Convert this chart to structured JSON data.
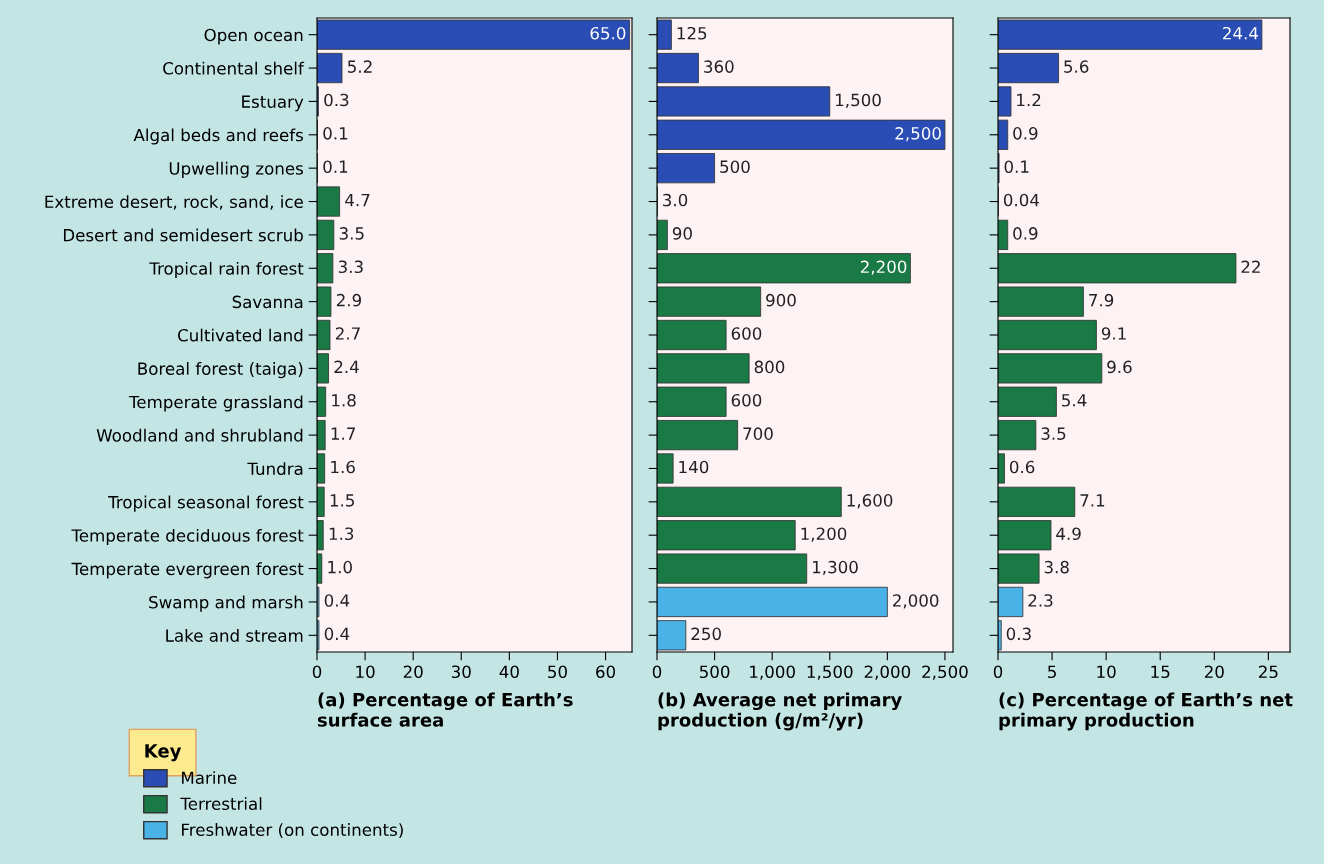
{
  "chart_data": [
    {
      "type": "bar",
      "orientation": "horizontal",
      "xlabel": "(a) Percentage of Earth’s\nsurface area",
      "categories": [
        "Open ocean",
        "Continental shelf",
        "Estuary",
        "Algal beds and reefs",
        "Upwelling zones",
        "Extreme desert, rock, sand, ice",
        "Desert and semidesert scrub",
        "Tropical rain forest",
        "Savanna",
        "Cultivated land",
        "Boreal forest (taiga)",
        "Temperate grassland",
        "Woodland and shrubland",
        "Tundra",
        "Tropical seasonal forest",
        "Temperate deciduous forest",
        "Temperate evergreen forest",
        "Swamp and marsh",
        "Lake and stream"
      ],
      "xlim": [
        0,
        65.5
      ],
      "xticks": [
        0,
        10,
        20,
        30,
        40,
        50,
        60
      ],
      "legend": "bottom left",
      "legend_title": "Key",
      "series": [
        {
          "name": "Marine",
          "color": "#2a4db5",
          "values": [
            65.0,
            5.2,
            0.3,
            0.1,
            0.1,
            null,
            null,
            null,
            null,
            null,
            null,
            null,
            null,
            null,
            null,
            null,
            null,
            null,
            null
          ],
          "value_labels": [
            "65.0",
            "5.2",
            "0.3",
            "0.1",
            "0.1",
            null,
            null,
            null,
            null,
            null,
            null,
            null,
            null,
            null,
            null,
            null,
            null,
            null,
            null
          ]
        },
        {
          "name": "Terrestrial",
          "color": "#1a7a45",
          "values": [
            null,
            null,
            null,
            null,
            null,
            4.7,
            3.5,
            3.3,
            2.9,
            2.7,
            2.4,
            1.8,
            1.7,
            1.6,
            1.5,
            1.3,
            1.0,
            null,
            null
          ],
          "value_labels": [
            null,
            null,
            null,
            null,
            null,
            "4.7",
            "3.5",
            "3.3",
            "2.9",
            "2.7",
            "2.4",
            "1.8",
            "1.7",
            "1.6",
            "1.5",
            "1.3",
            "1.0",
            null,
            null
          ]
        },
        {
          "name": "Freshwater (on continents)",
          "color": "#49b3e8",
          "values": [
            null,
            null,
            null,
            null,
            null,
            null,
            null,
            null,
            null,
            null,
            null,
            null,
            null,
            null,
            null,
            null,
            null,
            0.4,
            0.4
          ],
          "value_labels": [
            null,
            null,
            null,
            null,
            null,
            null,
            null,
            null,
            null,
            null,
            null,
            null,
            null,
            null,
            null,
            null,
            null,
            "0.4",
            "0.4"
          ]
        }
      ]
    },
    {
      "type": "bar",
      "orientation": "horizontal",
      "xlabel": "(b) Average net primary\nproduction (g/m²/yr)",
      "tick_labels": "x",
      "categories": [
        null,
        null,
        null,
        null,
        null,
        null,
        null,
        null,
        null,
        null,
        null,
        null,
        null,
        null,
        null,
        null,
        null,
        null,
        null
      ],
      "xlim": [
        0,
        2570
      ],
      "xticks": [
        0,
        {
          "value": 500,
          "label": "500"
        },
        {
          "value": 1000,
          "label": "1,000"
        },
        {
          "value": 1500,
          "label": "1,500"
        },
        {
          "value": 2000,
          "label": "2,000"
        },
        {
          "value": 2500,
          "label": "2,500"
        }
      ],
      "series": [
        {
          "color": "#2a4db5",
          "values": [
            125,
            360,
            1500,
            2500,
            500,
            null,
            null,
            null,
            null,
            null,
            null,
            null,
            null,
            null,
            null,
            null,
            null,
            null,
            null
          ],
          "value_labels": [
            "125",
            "360",
            "1,500",
            "2,500",
            "500",
            null,
            null,
            null,
            null,
            null,
            null,
            null,
            null,
            null,
            null,
            null,
            null,
            null,
            null
          ]
        },
        {
          "color": "#1a7a45",
          "values": [
            null,
            null,
            null,
            null,
            null,
            3.0,
            90,
            2200,
            900,
            600,
            800,
            600,
            700,
            140,
            1600,
            1200,
            1300,
            null,
            null
          ],
          "value_labels": [
            null,
            null,
            null,
            null,
            null,
            "3.0",
            "90",
            "2,200",
            "900",
            "600",
            "800",
            "600",
            "700",
            "140",
            "1,600",
            "1,200",
            "1,300",
            null,
            null
          ]
        },
        {
          "color": "#49b3e8",
          "values": [
            null,
            null,
            null,
            null,
            null,
            null,
            null,
            null,
            null,
            null,
            null,
            null,
            null,
            null,
            null,
            null,
            null,
            2000,
            250
          ],
          "value_labels": [
            null,
            null,
            null,
            null,
            null,
            null,
            null,
            null,
            null,
            null,
            null,
            null,
            null,
            null,
            null,
            null,
            null,
            "2,000",
            "250"
          ]
        }
      ]
    },
    {
      "type": "bar",
      "orientation": "horizontal",
      "xlabel": "(c) Percentage of Earth’s net\nprimary production",
      "tick_labels": "x",
      "categories": [
        null,
        null,
        null,
        null,
        null,
        null,
        null,
        null,
        null,
        null,
        null,
        null,
        null,
        null,
        null,
        null,
        null,
        null,
        null
      ],
      "xlim": [
        0,
        27
      ],
      "xticks": [
        0,
        5,
        10,
        15,
        20,
        25
      ],
      "series": [
        {
          "color": "#2a4db5",
          "values": [
            24.4,
            5.6,
            1.2,
            0.9,
            0.1,
            null,
            null,
            null,
            null,
            null,
            null,
            null,
            null,
            null,
            null,
            null,
            null,
            null,
            null
          ],
          "value_labels": [
            "24.4",
            "5.6",
            "1.2",
            "0.9",
            "0.1",
            null,
            null,
            null,
            null,
            null,
            null,
            null,
            null,
            null,
            null,
            null,
            null,
            null,
            null
          ]
        },
        {
          "color": "#1a7a45",
          "values": [
            null,
            null,
            null,
            null,
            null,
            0.04,
            0.9,
            22,
            7.9,
            9.1,
            9.6,
            5.4,
            3.5,
            0.6,
            7.1,
            4.9,
            3.8,
            null,
            null
          ],
          "value_labels": [
            null,
            null,
            null,
            null,
            null,
            "0.04",
            "0.9",
            "22",
            "7.9",
            "9.1",
            "9.6",
            "5.4",
            "3.5",
            "0.6",
            "7.1",
            "4.9",
            "3.8",
            null,
            null
          ]
        },
        {
          "color": "#49b3e8",
          "values": [
            null,
            null,
            null,
            null,
            null,
            null,
            null,
            null,
            null,
            null,
            null,
            null,
            null,
            null,
            null,
            null,
            null,
            2.3,
            0.3
          ],
          "value_labels": [
            null,
            null,
            null,
            null,
            null,
            null,
            null,
            null,
            null,
            null,
            null,
            null,
            null,
            null,
            null,
            null,
            null,
            "2.3",
            "0.3"
          ]
        }
      ]
    }
  ]
}
